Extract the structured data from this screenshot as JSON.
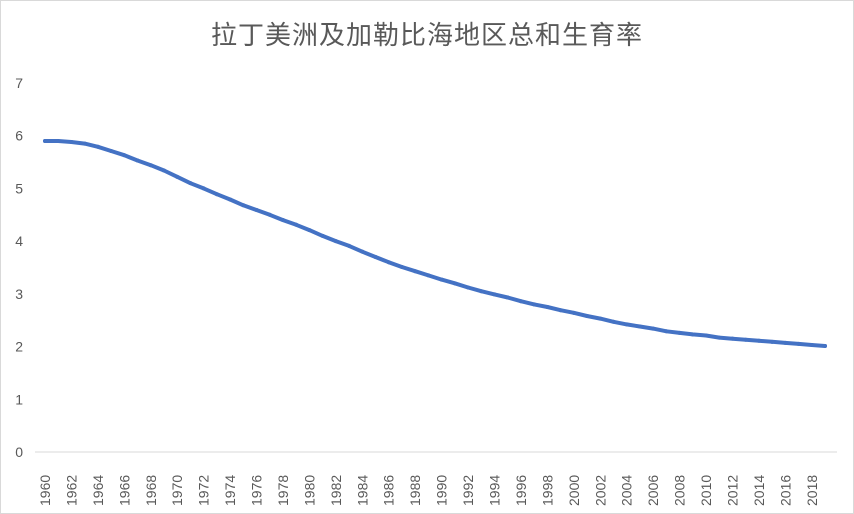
{
  "chart_data": {
    "type": "line",
    "title": "拉丁美洲及加勒比海地区总和生育率",
    "xlabel": "",
    "ylabel": "",
    "ylim": [
      0,
      7
    ],
    "yticks": [
      "0",
      "1",
      "2",
      "3",
      "4",
      "5",
      "6",
      "7"
    ],
    "xticks": [
      "1960",
      "1962",
      "1964",
      "1966",
      "1968",
      "1970",
      "1972",
      "1974",
      "1976",
      "1978",
      "1980",
      "1982",
      "1984",
      "1986",
      "1988",
      "1990",
      "1992",
      "1994",
      "1996",
      "1998",
      "2000",
      "2002",
      "2004",
      "2006",
      "2008",
      "2010",
      "2012",
      "2014",
      "2016",
      "2018"
    ],
    "grid": false,
    "legend": "none",
    "series": [
      {
        "color": "#4472c4",
        "x": [
          1960,
          1961,
          1962,
          1963,
          1964,
          1965,
          1966,
          1967,
          1968,
          1969,
          1970,
          1971,
          1972,
          1973,
          1974,
          1975,
          1976,
          1977,
          1978,
          1979,
          1980,
          1981,
          1982,
          1983,
          1984,
          1985,
          1986,
          1987,
          1988,
          1989,
          1990,
          1991,
          1992,
          1993,
          1994,
          1995,
          1996,
          1997,
          1998,
          1999,
          2000,
          2001,
          2002,
          2003,
          2004,
          2005,
          2006,
          2007,
          2008,
          2009,
          2010,
          2011,
          2012,
          2013,
          2014,
          2015,
          2016,
          2017,
          2018,
          2019
        ],
        "values": [
          5.9,
          5.9,
          5.88,
          5.85,
          5.79,
          5.71,
          5.63,
          5.53,
          5.44,
          5.34,
          5.22,
          5.1,
          5.0,
          4.89,
          4.79,
          4.68,
          4.59,
          4.5,
          4.4,
          4.31,
          4.21,
          4.1,
          4.0,
          3.91,
          3.8,
          3.7,
          3.6,
          3.51,
          3.43,
          3.35,
          3.27,
          3.2,
          3.12,
          3.05,
          2.99,
          2.93,
          2.86,
          2.8,
          2.75,
          2.69,
          2.64,
          2.58,
          2.53,
          2.47,
          2.42,
          2.38,
          2.34,
          2.29,
          2.26,
          2.23,
          2.21,
          2.17,
          2.15,
          2.13,
          2.11,
          2.09,
          2.07,
          2.05,
          2.03,
          2.01
        ]
      }
    ]
  }
}
